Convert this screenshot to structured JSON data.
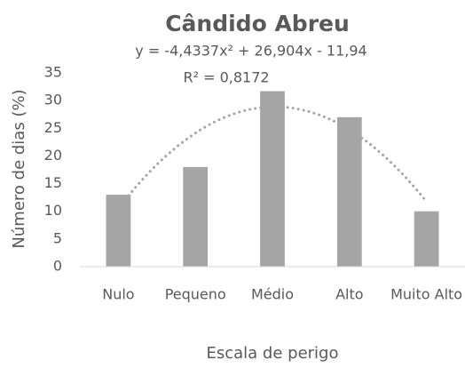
{
  "chart_data": {
    "type": "bar",
    "title": "Cândido Abreu",
    "annotations": [
      "y = -4,4337x² + 26,904x - 11,94",
      "R² = 0,8172"
    ],
    "trendline": {
      "type": "polynomial",
      "coefficients": [
        -4.4337,
        26.904,
        -11.94
      ]
    },
    "x_label": "Escala de perigo",
    "y_label": "Número de dias (%)",
    "categories": [
      "Nulo",
      "Pequeno",
      "Médio",
      "Alto",
      "Muito Alto"
    ],
    "values": [
      13,
      18,
      31.7,
      27,
      10
    ],
    "color": "#a5a5a5",
    "ylim": [
      0,
      35
    ],
    "yticks": [
      0,
      5,
      10,
      15,
      20,
      25,
      30,
      35
    ],
    "grid": false
  }
}
